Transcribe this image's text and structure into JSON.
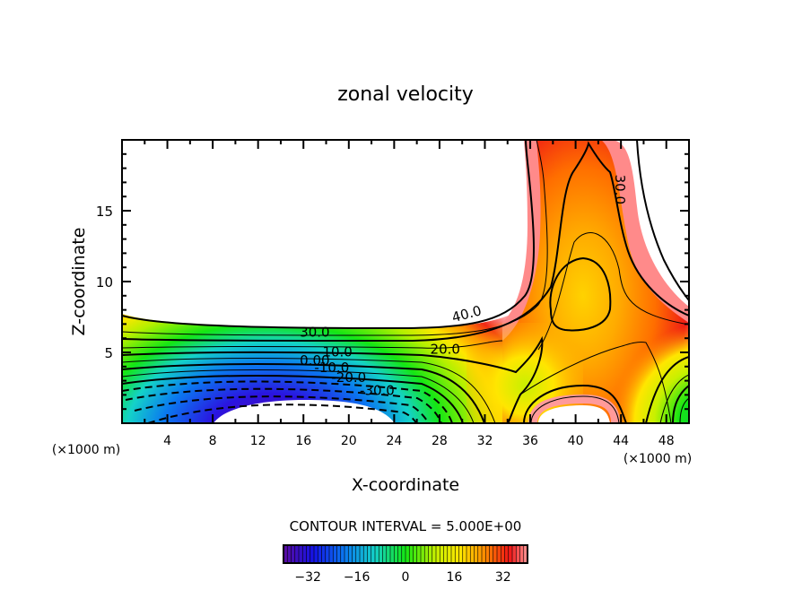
{
  "chart_data": {
    "type": "contour",
    "title": "zonal velocity",
    "xlabel": "X-coordinate",
    "ylabel": "Z-coordinate",
    "x_units": "(×1000 m)",
    "z_units": "(×1000 m)",
    "xlim": [
      0,
      50
    ],
    "ylim": [
      0,
      20
    ],
    "xticks": [
      4,
      8,
      12,
      16,
      20,
      24,
      28,
      32,
      36,
      40,
      44,
      48
    ],
    "xticklabels": [
      "4",
      "8",
      "12",
      "16",
      "20",
      "24",
      "28",
      "32",
      "36",
      "40",
      "44",
      "48"
    ],
    "yticks": [
      5,
      10,
      15
    ],
    "yticklabels": [
      "5",
      "10",
      "15"
    ],
    "contour_interval_text": "CONTOUR INTERVAL = 5.000E+00",
    "contour_interval": 5.0,
    "contour_labels": [
      {
        "text": "30.0",
        "x": 17.0,
        "z": 6.1
      },
      {
        "text": "10.0",
        "x": 19.0,
        "z": 4.7
      },
      {
        "text": "0.00",
        "x": 17.0,
        "z": 4.1
      },
      {
        "text": "-10.0",
        "x": 18.5,
        "z": 3.6
      },
      {
        "text": "-20.0",
        "x": 20.0,
        "z": 2.9
      },
      {
        "text": "-30.0",
        "x": 22.5,
        "z": 2.0
      },
      {
        "text": "20.0",
        "x": 28.5,
        "z": 4.9
      },
      {
        "text": "40.0",
        "x": 30.5,
        "z": 7.4
      },
      {
        "text": "30.0",
        "x": 43.5,
        "z": 16.5
      }
    ],
    "colorbar": {
      "range": [
        -40,
        40
      ],
      "ticks": [
        -32,
        -16,
        0,
        16,
        32
      ],
      "ticklabels": [
        "−32",
        "−16",
        "0",
        "16",
        "32"
      ]
    },
    "colors": {
      "purple": "#5a0aa0",
      "blue": "#0a14e6",
      "cyan": "#14c8f0",
      "green": "#14e614",
      "yellow": "#fff000",
      "orange": "#ff8c00",
      "red": "#f01414",
      "pink": "#ff9696"
    }
  }
}
